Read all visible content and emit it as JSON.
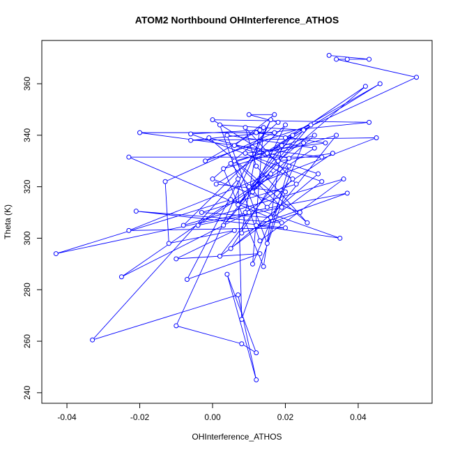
{
  "chart_data": {
    "type": "line",
    "title": "ATOM2 Northbound OHInterference_ATHOS",
    "x_label": "OHInterference_ATHOS",
    "y_label": "Theta (K)",
    "markers": true,
    "x": [
      0.032,
      0.043,
      0.037,
      0.034,
      0.056,
      0.02,
      0.046,
      0.015,
      0.042,
      0.01,
      0.045,
      -0.006,
      0.043,
      0.0,
      0.018,
      0.033,
      0.009,
      0.037,
      0.012,
      0.035,
      0.005,
      -0.043,
      0.01,
      -0.025,
      0.016,
      -0.023,
      0.02,
      -0.021,
      0.019,
      -0.023,
      0.03,
      -0.02,
      0.017,
      -0.013,
      -0.012,
      0.006,
      -0.01,
      0.013,
      -0.007,
      0.016,
      -0.01,
      0.008,
      0.012,
      0.004,
      0.012,
      0.007,
      -0.033,
      0.007,
      0.008,
      0.02,
      0.001,
      0.022,
      0.003,
      0.027,
      -0.002,
      0.014,
      0.011,
      0.025,
      0.006,
      0.019,
      -0.004,
      0.028,
      0.004,
      0.015,
      0.021,
      0.002,
      0.03,
      -0.006,
      0.013,
      0.008,
      0.024,
      0.0,
      0.018,
      0.01,
      0.017,
      0.006,
      0.029,
      0.005,
      0.021,
      -0.001,
      0.026,
      0.012,
      0.009,
      0.023,
      -0.003,
      0.016,
      0.034,
      0.003,
      0.014,
      0.019,
      0.007,
      0.025,
      0.002,
      0.013,
      0.036,
      -0.008,
      0.02,
      0.011,
      0.028,
      0.005,
      0.015,
      0.022,
      0.009,
      0.031,
      0.012
    ],
    "series": [
      {
        "color": "#0000ff",
        "values": [
          371,
          369.5,
          369.5,
          369.5,
          362.5,
          339,
          360,
          333,
          359,
          320,
          339,
          338,
          345,
          346,
          330,
          333,
          310,
          317.5,
          305,
          300,
          315,
          294,
          310,
          285,
          325,
          303,
          304,
          310.5,
          306,
          331.5,
          331.5,
          341,
          341,
          322,
          298,
          303,
          292,
          294,
          284,
          346,
          266,
          259,
          255.5,
          286,
          245,
          278,
          260.5,
          323,
          268.5,
          318,
          321,
          340,
          305,
          344,
          330,
          343,
          290,
          337,
          330,
          312,
          305,
          335,
          340,
          298,
          328,
          293,
          322,
          340.5,
          342,
          302,
          310,
          323,
          345,
          348,
          348,
          336,
          325,
          296,
          331,
          339,
          306,
          328,
          343,
          321,
          310,
          308,
          340,
          327,
          289,
          336,
          313,
          342,
          344,
          299,
          323,
          305,
          344,
          318,
          340,
          329,
          312,
          323,
          333,
          337,
          341
        ]
      }
    ],
    "xlim": [
      -0.0469,
      0.0603
    ],
    "ylim": [
      235.9,
      376.8
    ],
    "xticks": [
      -0.04,
      -0.02,
      {
        "value": 0,
        "label": "0.00"
      },
      0.02,
      0.04
    ],
    "yticks": [
      240,
      260,
      280,
      300,
      320,
      340,
      360
    ]
  }
}
